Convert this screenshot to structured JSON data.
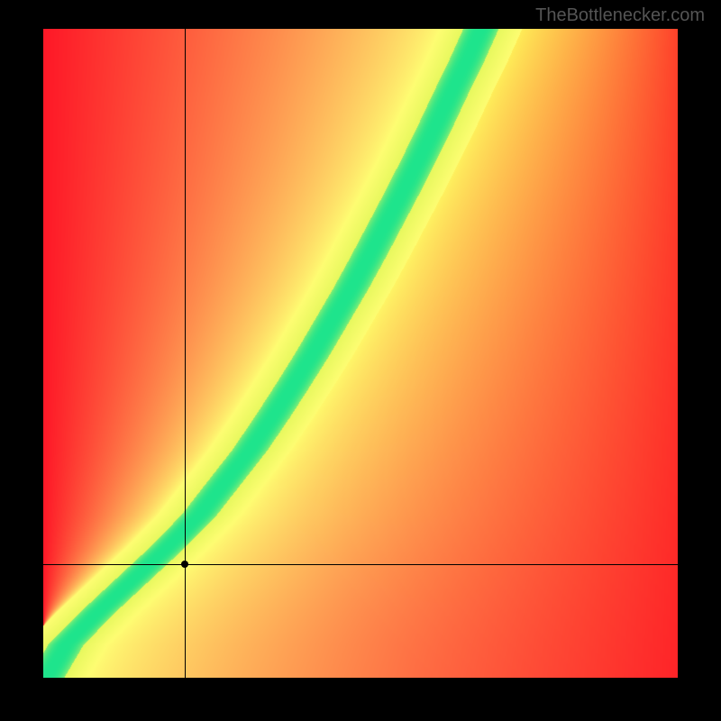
{
  "watermark": {
    "text": "TheBottlenecker.com",
    "color": "#555555",
    "fontsize": 20
  },
  "layout": {
    "frame_size": [
      800,
      800
    ],
    "frame_background_color": "#000000",
    "plot_origin": [
      48,
      32
    ],
    "plot_size": [
      704,
      720
    ]
  },
  "heatmap": {
    "type": "heatmap",
    "resolution": 200,
    "xlim": [
      0.0,
      1.0
    ],
    "ylim": [
      0.0,
      1.0
    ],
    "curve": {
      "description": "Monotone increasing band from lower-left to upper-middle. x as a function of y.",
      "points": [
        {
          "y": 0.0,
          "x": 0.005
        },
        {
          "y": 0.05,
          "x": 0.035
        },
        {
          "y": 0.1,
          "x": 0.085
        },
        {
          "y": 0.15,
          "x": 0.14
        },
        {
          "y": 0.2,
          "x": 0.195
        },
        {
          "y": 0.25,
          "x": 0.245
        },
        {
          "y": 0.3,
          "x": 0.285
        },
        {
          "y": 0.35,
          "x": 0.325
        },
        {
          "y": 0.4,
          "x": 0.36
        },
        {
          "y": 0.45,
          "x": 0.393
        },
        {
          "y": 0.5,
          "x": 0.425
        },
        {
          "y": 0.55,
          "x": 0.455
        },
        {
          "y": 0.6,
          "x": 0.485
        },
        {
          "y": 0.65,
          "x": 0.513
        },
        {
          "y": 0.7,
          "x": 0.54
        },
        {
          "y": 0.75,
          "x": 0.567
        },
        {
          "y": 0.8,
          "x": 0.593
        },
        {
          "y": 0.85,
          "x": 0.618
        },
        {
          "y": 0.9,
          "x": 0.642
        },
        {
          "y": 0.95,
          "x": 0.667
        },
        {
          "y": 1.0,
          "x": 0.69
        }
      ],
      "band_half_width": 0.028,
      "yellow_half_width": 0.065
    },
    "gradients": {
      "left_of_curve": {
        "near": "#fefd72",
        "far": "#fe1827"
      },
      "right_of_curve": {
        "near": "#fefd72",
        "far": "#fe1827"
      },
      "top_right_tint": "#ffd835",
      "band_color": "#1ee48c",
      "band_edge_color": "#e7f85e",
      "corner_fade_strength": 0.55
    }
  },
  "crosshair": {
    "x_normalized": 0.223,
    "y_normalized": 0.175,
    "line_color": "#000000",
    "line_width": 1,
    "dot_color": "#000000",
    "dot_size": 8
  }
}
